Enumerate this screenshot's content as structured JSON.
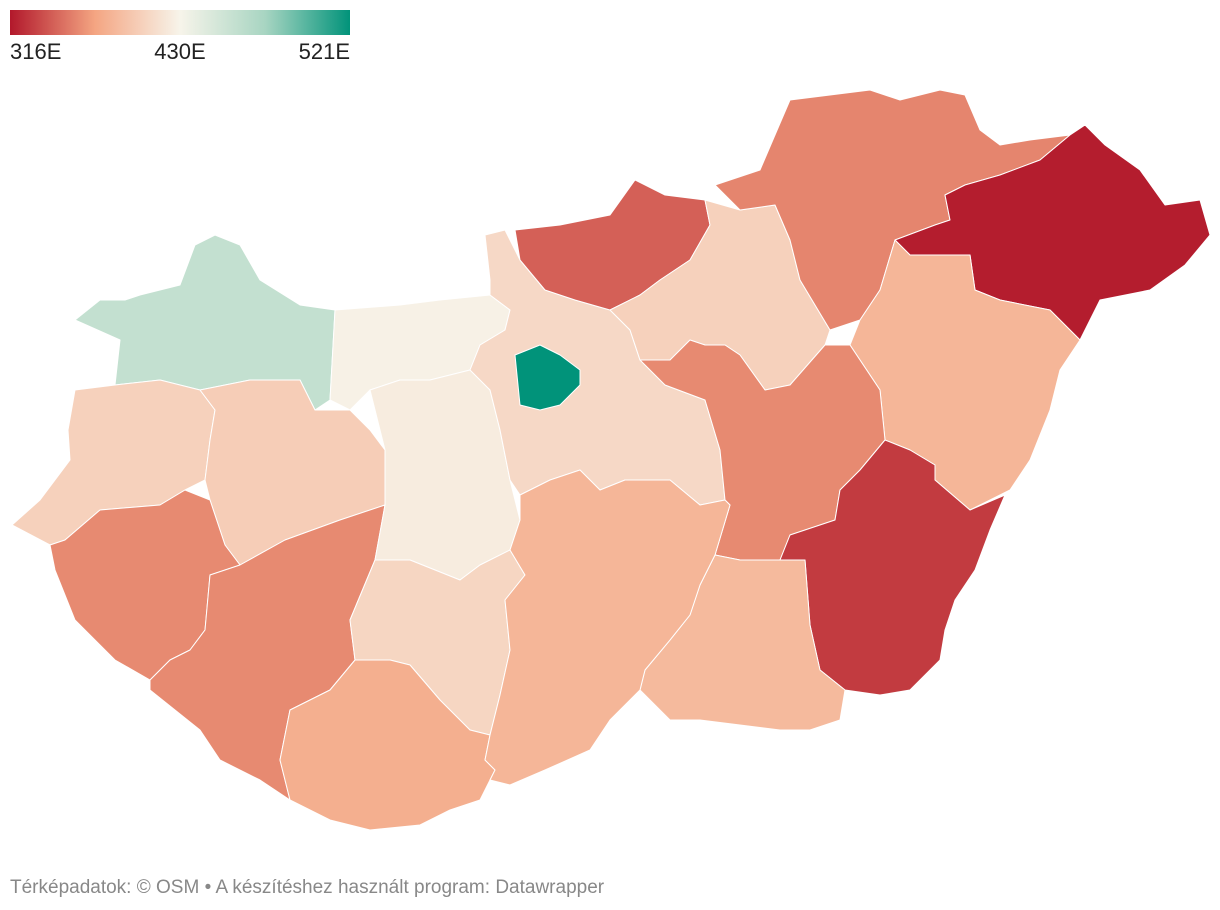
{
  "legend": {
    "ticks": [
      {
        "value": 316,
        "label": "316E"
      },
      {
        "value": 430,
        "label": "430E"
      },
      {
        "value": 521,
        "label": "521E"
      }
    ],
    "colors": [
      "#b2182b",
      "#f4a582",
      "#f7f4ea",
      "#a8d5c2",
      "#01937a"
    ]
  },
  "regions": {
    "values": [
      460,
      428,
      405,
      402,
      362,
      362,
      424,
      408,
      380,
      410,
      521,
      345,
      405,
      360,
      318,
      385,
      362,
      330,
      388,
      385
    ]
  },
  "footer": "Térképadatok: © OSM  • A készítéshez használt program: Datawrapper"
}
